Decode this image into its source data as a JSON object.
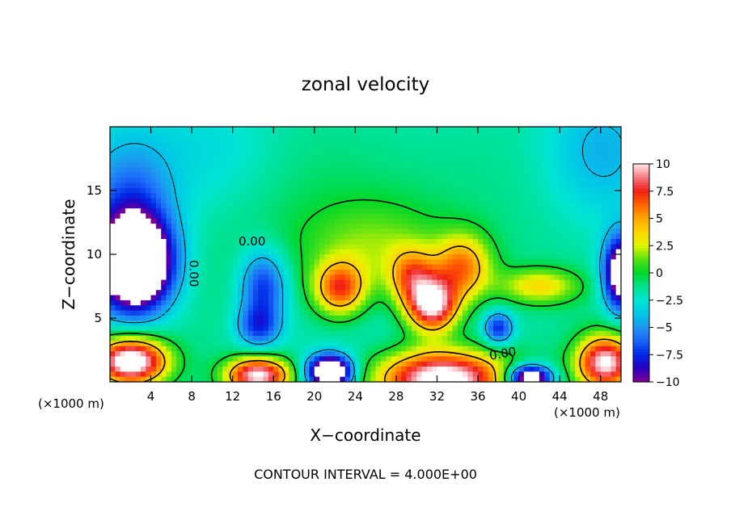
{
  "chart_data": {
    "type": "heatmap",
    "title": "zonal velocity",
    "xlabel": "X−coordinate",
    "ylabel": "Z−coordinate",
    "footer": "CONTOUR INTERVAL = 4.000E+00",
    "x_unit_left": "(×1000 m)",
    "x_unit_right": "(×1000 m)",
    "xlim": [
      0,
      50
    ],
    "ylim": [
      0,
      20
    ],
    "x_ticks": [
      {
        "v": 4,
        "label": "4"
      },
      {
        "v": 8,
        "label": "8"
      },
      {
        "v": 12,
        "label": "12"
      },
      {
        "v": 16,
        "label": "16"
      },
      {
        "v": 20,
        "label": "20"
      },
      {
        "v": 24,
        "label": "24"
      },
      {
        "v": 28,
        "label": "28"
      },
      {
        "v": 32,
        "label": "32"
      },
      {
        "v": 36,
        "label": "36"
      },
      {
        "v": 40,
        "label": "40"
      },
      {
        "v": 44,
        "label": "44"
      },
      {
        "v": 48,
        "label": "48"
      }
    ],
    "y_ticks": [
      {
        "v": 5,
        "label": "5"
      },
      {
        "v": 10,
        "label": "10"
      },
      {
        "v": 15,
        "label": "15"
      }
    ],
    "colorbar": {
      "min": -10,
      "max": 10,
      "ticks": [
        {
          "v": 10,
          "label": "10"
        },
        {
          "v": 7.5,
          "label": "7.5"
        },
        {
          "v": 5,
          "label": "5"
        },
        {
          "v": 2.5,
          "label": "2.5"
        },
        {
          "v": 0,
          "label": "0"
        },
        {
          "v": -2.5,
          "label": "−2.5"
        },
        {
          "v": -5,
          "label": "−5"
        },
        {
          "v": -7.5,
          "label": "−7.5"
        },
        {
          "v": -10,
          "label": "−10"
        }
      ]
    },
    "contour_labels": [
      {
        "x": 13.9,
        "z": 10.7,
        "label": "0.00",
        "rotate": 0
      },
      {
        "x": 7.8,
        "z": 8.5,
        "label": "0.00",
        "rotate": 90
      },
      {
        "x": 38.5,
        "z": 1.9,
        "label": "0.00",
        "rotate": -10
      }
    ],
    "grid": false,
    "field_features": [
      {
        "x": 24.0,
        "z": 14.5,
        "v": 1.5,
        "sx": 12,
        "sz": 6
      },
      {
        "x": 26.0,
        "z": 10.5,
        "v": 3.0,
        "sx": 5,
        "sz": 2.5
      },
      {
        "x": 2.5,
        "z": 9.2,
        "v": -16,
        "sx": 2.4,
        "sz": 2.4
      },
      {
        "x": 2.0,
        "z": 13.0,
        "v": -5,
        "sx": 3,
        "sz": 4
      },
      {
        "x": 15.0,
        "z": 7.5,
        "v": -6,
        "sx": 1.6,
        "sz": 2.0
      },
      {
        "x": 14.5,
        "z": 4.3,
        "v": -5,
        "sx": 1.5,
        "sz": 1.2
      },
      {
        "x": 22.5,
        "z": 7.3,
        "v": 8,
        "sx": 1.8,
        "sz": 1.5
      },
      {
        "x": 31.5,
        "z": 6.0,
        "v": 12,
        "sx": 1.8,
        "sz": 1.5
      },
      {
        "x": 34.5,
        "z": 9.0,
        "v": 7,
        "sx": 2.0,
        "sz": 1.8
      },
      {
        "x": 29.5,
        "z": 8.3,
        "v": 6,
        "sx": 1.6,
        "sz": 1.5
      },
      {
        "x": 42.0,
        "z": 7.5,
        "v": 5,
        "sx": 2.8,
        "sz": 1.0
      },
      {
        "x": 38.0,
        "z": 4.2,
        "v": -6,
        "sx": 1.0,
        "sz": 0.9
      },
      {
        "x": 50.0,
        "z": 8.5,
        "v": -12,
        "sx": 1.2,
        "sz": 2.0
      },
      {
        "x": 2.0,
        "z": 1.6,
        "v": 14,
        "sx": 2.5,
        "sz": 1.3
      },
      {
        "x": 14.5,
        "z": 0.5,
        "v": 12,
        "sx": 2.2,
        "sz": 1.0
      },
      {
        "x": 21.5,
        "z": 0.8,
        "v": -14,
        "sx": 1.5,
        "sz": 0.9
      },
      {
        "x": 32.5,
        "z": 0.2,
        "v": 14,
        "sx": 4.5,
        "sz": 1.6
      },
      {
        "x": 41.0,
        "z": 0.3,
        "v": -13,
        "sx": 1.5,
        "sz": 0.7
      },
      {
        "x": 48.5,
        "z": 1.5,
        "v": 12,
        "sx": 2.0,
        "sz": 1.5
      },
      {
        "x": 48.0,
        "z": 18.0,
        "v": -3,
        "sx": 4,
        "sz": 4
      },
      {
        "x": 10.0,
        "z": 18.0,
        "v": -2,
        "sx": 5,
        "sz": 4
      }
    ]
  }
}
